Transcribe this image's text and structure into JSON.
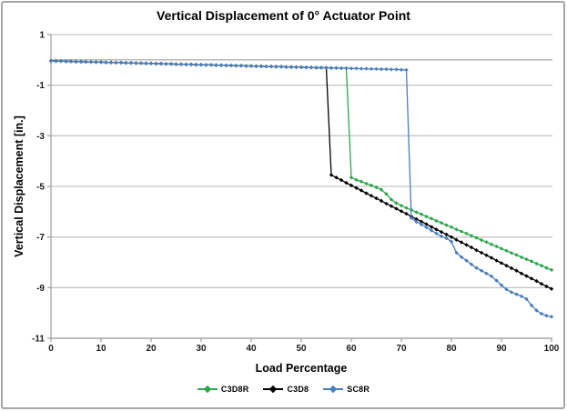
{
  "window": {
    "background": "#ffffff",
    "border_color": "#a6a6a6"
  },
  "chart_data": {
    "type": "line",
    "title": "Vertical Displacement of 0° Actuator Point",
    "xlabel": "Load Percentage",
    "ylabel": "Vertical Displacement [in.]",
    "xlim": [
      0,
      100
    ],
    "ylim": [
      -11,
      1
    ],
    "xticks": [
      0,
      10,
      20,
      30,
      40,
      50,
      60,
      70,
      80,
      90,
      100
    ],
    "yticks": [
      1,
      -1,
      -3,
      -5,
      -7,
      -9,
      -11
    ],
    "grid": "horizontal",
    "zero_line_value": 0,
    "gridline_color": "#c6c6c6",
    "zero_line_color": "#b3b3b3",
    "axis_color": "#9e9e9e",
    "tick_label_color": "#1a1a1a",
    "legend_position": "bottom",
    "marker": "diamond",
    "x": [
      0,
      1,
      2,
      3,
      4,
      5,
      6,
      7,
      8,
      9,
      10,
      11,
      12,
      13,
      14,
      15,
      16,
      17,
      18,
      19,
      20,
      21,
      22,
      23,
      24,
      25,
      26,
      27,
      28,
      29,
      30,
      31,
      32,
      33,
      34,
      35,
      36,
      37,
      38,
      39,
      40,
      41,
      42,
      43,
      44,
      45,
      46,
      47,
      48,
      49,
      50,
      51,
      52,
      53,
      54,
      55,
      56,
      57,
      58,
      59,
      60,
      61,
      62,
      63,
      64,
      65,
      66,
      67,
      68,
      69,
      70,
      71,
      72,
      73,
      74,
      75,
      76,
      77,
      78,
      79,
      80,
      81,
      82,
      83,
      84,
      85,
      86,
      87,
      88,
      89,
      90,
      91,
      92,
      93,
      94,
      95,
      96,
      97,
      98,
      99,
      100
    ],
    "series": [
      {
        "name": "C3D8R",
        "color": "#2fa54e",
        "y": [
          -0.04,
          -0.05,
          -0.05,
          -0.06,
          -0.06,
          -0.07,
          -0.07,
          -0.08,
          -0.08,
          -0.09,
          -0.09,
          -0.1,
          -0.1,
          -0.11,
          -0.11,
          -0.12,
          -0.12,
          -0.13,
          -0.13,
          -0.14,
          -0.14,
          -0.15,
          -0.15,
          -0.16,
          -0.16,
          -0.17,
          -0.17,
          -0.18,
          -0.18,
          -0.19,
          -0.19,
          -0.2,
          -0.2,
          -0.21,
          -0.21,
          -0.22,
          -0.22,
          -0.23,
          -0.23,
          -0.24,
          -0.24,
          -0.25,
          -0.25,
          -0.26,
          -0.26,
          -0.27,
          -0.27,
          -0.28,
          -0.28,
          -0.29,
          -0.29,
          -0.3,
          -0.3,
          -0.31,
          -0.31,
          -0.31,
          -0.32,
          -0.32,
          -0.33,
          -0.33,
          -4.65,
          -4.74,
          -4.81,
          -4.89,
          -4.96,
          -5.04,
          -5.13,
          -5.3,
          -5.52,
          -5.66,
          -5.76,
          -5.85,
          -5.93,
          -6.02,
          -6.1,
          -6.19,
          -6.27,
          -6.36,
          -6.44,
          -6.53,
          -6.61,
          -6.7,
          -6.78,
          -6.86,
          -6.95,
          -7.03,
          -7.12,
          -7.2,
          -7.29,
          -7.37,
          -7.46,
          -7.54,
          -7.63,
          -7.71,
          -7.8,
          -7.88,
          -7.96,
          -8.05,
          -8.13,
          -8.22,
          -8.3
        ]
      },
      {
        "name": "C3D8",
        "color": "#000000",
        "y": [
          -0.04,
          -0.05,
          -0.05,
          -0.06,
          -0.06,
          -0.07,
          -0.07,
          -0.08,
          -0.08,
          -0.09,
          -0.09,
          -0.1,
          -0.1,
          -0.11,
          -0.11,
          -0.12,
          -0.12,
          -0.13,
          -0.13,
          -0.14,
          -0.14,
          -0.15,
          -0.15,
          -0.16,
          -0.16,
          -0.17,
          -0.17,
          -0.18,
          -0.18,
          -0.19,
          -0.19,
          -0.2,
          -0.2,
          -0.21,
          -0.21,
          -0.22,
          -0.22,
          -0.23,
          -0.23,
          -0.24,
          -0.24,
          -0.25,
          -0.25,
          -0.26,
          -0.26,
          -0.27,
          -0.27,
          -0.28,
          -0.28,
          -0.29,
          -0.29,
          -0.3,
          -0.3,
          -0.31,
          -0.31,
          -0.31,
          -4.55,
          -4.65,
          -4.75,
          -4.86,
          -4.96,
          -5.06,
          -5.16,
          -5.27,
          -5.37,
          -5.47,
          -5.57,
          -5.68,
          -5.78,
          -5.88,
          -5.98,
          -6.08,
          -6.19,
          -6.29,
          -6.39,
          -6.49,
          -6.6,
          -6.7,
          -6.8,
          -6.9,
          -7.0,
          -7.11,
          -7.21,
          -7.31,
          -7.41,
          -7.52,
          -7.62,
          -7.72,
          -7.82,
          -7.93,
          -8.03,
          -8.13,
          -8.23,
          -8.33,
          -8.44,
          -8.54,
          -8.64,
          -8.74,
          -8.85,
          -8.95,
          -9.05
        ]
      },
      {
        "name": "SC8R",
        "color": "#4a7dbb",
        "y": [
          -0.04,
          -0.05,
          -0.05,
          -0.06,
          -0.06,
          -0.07,
          -0.07,
          -0.08,
          -0.08,
          -0.09,
          -0.09,
          -0.1,
          -0.1,
          -0.11,
          -0.11,
          -0.12,
          -0.12,
          -0.13,
          -0.13,
          -0.14,
          -0.14,
          -0.15,
          -0.15,
          -0.16,
          -0.16,
          -0.17,
          -0.17,
          -0.18,
          -0.18,
          -0.19,
          -0.19,
          -0.2,
          -0.2,
          -0.21,
          -0.21,
          -0.22,
          -0.22,
          -0.23,
          -0.23,
          -0.24,
          -0.24,
          -0.25,
          -0.25,
          -0.26,
          -0.26,
          -0.27,
          -0.27,
          -0.28,
          -0.28,
          -0.29,
          -0.29,
          -0.3,
          -0.3,
          -0.31,
          -0.31,
          -0.31,
          -0.32,
          -0.32,
          -0.33,
          -0.33,
          -0.34,
          -0.34,
          -0.35,
          -0.35,
          -0.36,
          -0.36,
          -0.37,
          -0.37,
          -0.38,
          -0.38,
          -0.39,
          -0.4,
          -6.25,
          -6.4,
          -6.5,
          -6.62,
          -6.74,
          -6.86,
          -6.97,
          -7.05,
          -7.18,
          -7.62,
          -7.79,
          -7.93,
          -8.08,
          -8.22,
          -8.33,
          -8.44,
          -8.55,
          -8.72,
          -8.9,
          -9.07,
          -9.18,
          -9.26,
          -9.34,
          -9.45,
          -9.7,
          -9.9,
          -10.03,
          -10.11,
          -10.15
        ]
      }
    ]
  }
}
